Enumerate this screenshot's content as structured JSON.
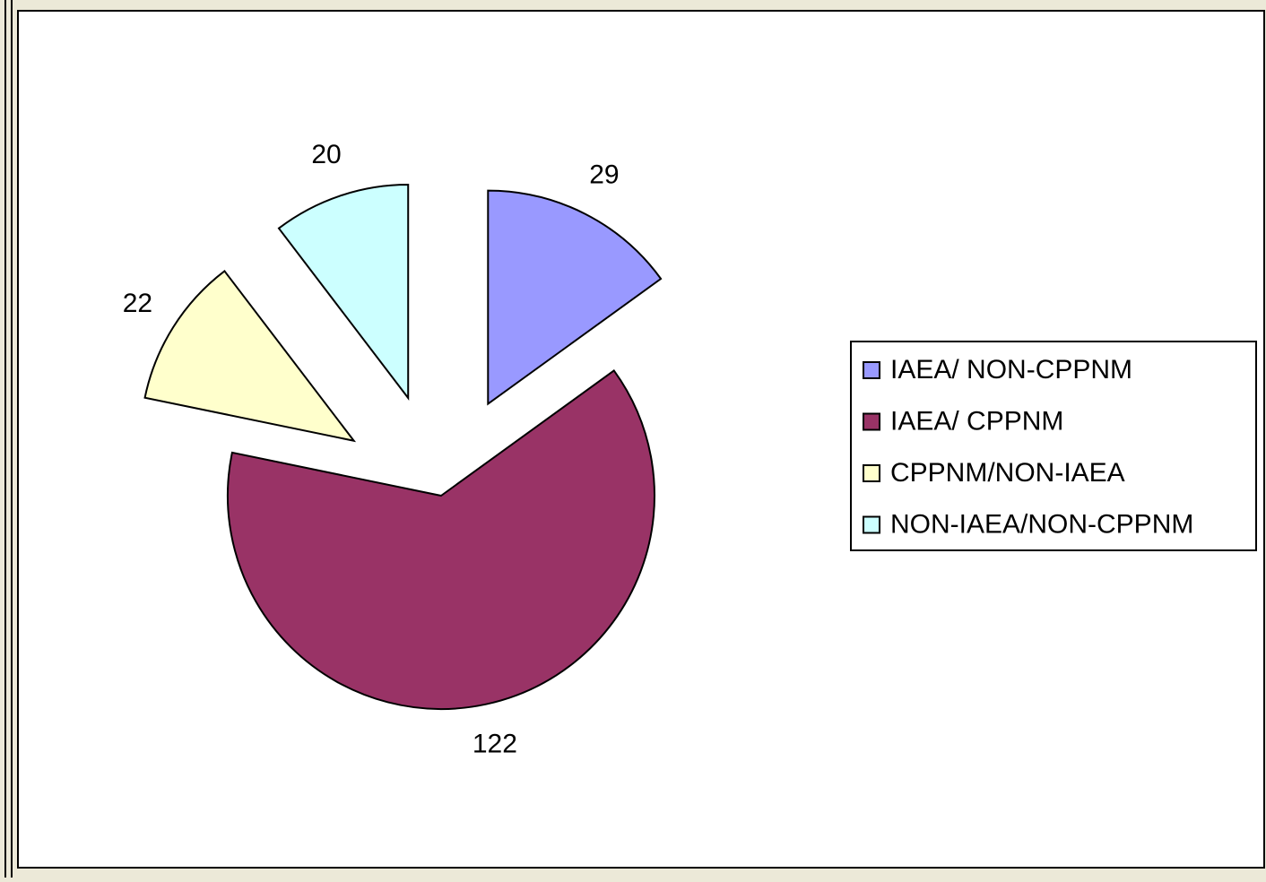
{
  "chart_data": {
    "type": "pie",
    "categories": [
      "IAEA/ NON-CPPNM",
      "IAEA/ CPPNM",
      "CPPNM/NON-IAEA",
      "NON-IAEA/NON-CPPNM"
    ],
    "values": [
      29,
      122,
      22,
      20
    ],
    "colors": [
      "#9999ff",
      "#993366",
      "#ffffcc",
      "#ccffff"
    ],
    "legend": "right"
  }
}
